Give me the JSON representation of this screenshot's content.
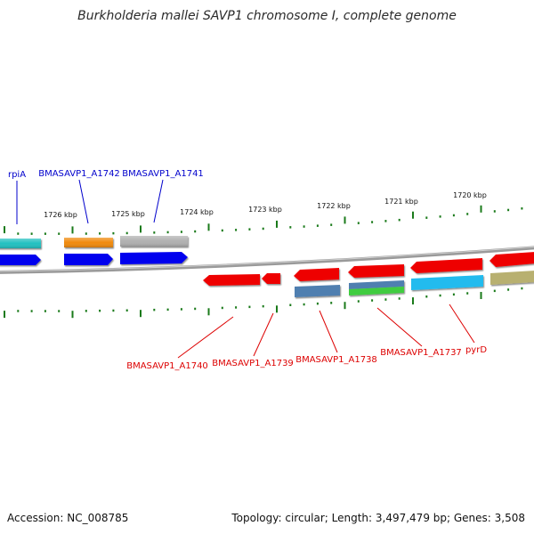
{
  "title": "Burkholderia mallei SAVP1 chromosome I, complete genome",
  "footer": {
    "accession": "Accession: NC_008785",
    "summary": "Topology: circular; Length: 3,497,479 bp; Genes: 3,508"
  },
  "ruler": {
    "unit": "kbp",
    "ticks": [
      {
        "kbp": 1726,
        "label": "1726 kbp"
      },
      {
        "kbp": 1725,
        "label": "1725 kbp"
      },
      {
        "kbp": 1724,
        "label": "1724 kbp"
      },
      {
        "kbp": 1723,
        "label": "1723 kbp"
      },
      {
        "kbp": 1722,
        "label": "1722 kbp"
      },
      {
        "kbp": 1721,
        "label": "1721 kbp"
      },
      {
        "kbp": 1720,
        "label": "1720 kbp"
      }
    ]
  },
  "gene_labels": {
    "forward": [
      {
        "name": "rpiA",
        "color": "#0000cc"
      },
      {
        "name": "BMASAVP1_A1742",
        "color": "#0000cc"
      },
      {
        "name": "BMASAVP1_A1741",
        "color": "#0000cc"
      }
    ],
    "reverse": [
      {
        "name": "BMASAVP1_A1740",
        "color": "#dd0000"
      },
      {
        "name": "BMASAVP1_A1739",
        "color": "#dd0000"
      },
      {
        "name": "BMASAVP1_A1738",
        "color": "#dd0000"
      },
      {
        "name": "BMASAVP1_A1737",
        "color": "#dd0000"
      },
      {
        "name": "pyrD",
        "color": "#dd0000"
      }
    ]
  },
  "colors": {
    "backbone": "#808080",
    "tick_marks": "#1a7a1a",
    "forward_strand_gene": "#0000ee",
    "reverse_strand_gene": "#ee0000",
    "cyan_feature": "#20c0c0",
    "orange_feature": "#f08a10",
    "gray_feature": "#b0b0b0",
    "steelblue_feature": "#4f7fb0",
    "green_feature": "#40cc40",
    "skyblue_feature": "#22bbee",
    "olive_feature": "#b8b070"
  }
}
